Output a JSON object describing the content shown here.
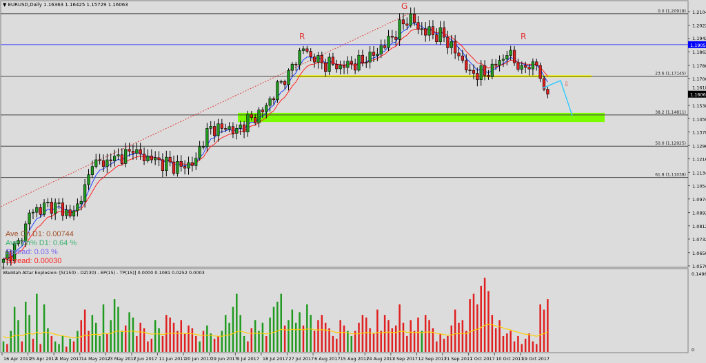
{
  "header": {
    "symbol": "EURUSD,Daily",
    "open": "1.16363",
    "high": "1.16425",
    "low": "1.15729",
    "close": "1.16063"
  },
  "stats": {
    "ave_ch": "Ave Ch D1: 0.00744",
    "ave_ch_pct": "Ave Ch% D1: 0.64 %",
    "spread_pct": "Spread: 0.03 %",
    "spread": "Spread: 0.00030"
  },
  "indicator": {
    "title": "Waddah Attar Explosion: [S(150) - DZ(30) - EP(15) - TP(15)] 0.0000 0.1081 0.0252 0.0003",
    "axis_max": "0.1496",
    "axis_min": "0"
  },
  "annotations": {
    "left_r": "R",
    "head_g": "G",
    "right_r": "R",
    "arrow": "⇩"
  },
  "colors": {
    "bull": "#1f9a1f",
    "bear": "#e02020",
    "ma_fast": "#2040ff",
    "ma_slow": "#ff2020",
    "fib": "#404040",
    "blue_line": "#7b7bef",
    "yellow_zone": "#ffff00",
    "green_zone": "#7cfc00",
    "cyan": "#33ccff",
    "hist_line": "#ffcc00"
  },
  "chart_data": {
    "type": "candlestick",
    "title": "EURUSD,Daily",
    "ylim": [
      1.057,
      1.2104
    ],
    "y_ticks": [
      "1.21040",
      "1.20220",
      "1.19420",
      "1.18620",
      "1.17800",
      "1.17000",
      "1.16180",
      "1.15380",
      "1.14580",
      "1.13780",
      "1.12960",
      "1.12160",
      "1.11340",
      "1.10540",
      "1.09740",
      "1.08920",
      "1.08120",
      "1.07320",
      "1.06500",
      "1.05700"
    ],
    "x_ticks": [
      "16 Apr 2017",
      "25 Apr 2017",
      "4 May 2017",
      "14 May 2017",
      "23 May 2017",
      "1 Jun 2017",
      "11 Jun 2017",
      "20 Jun 2017",
      "29 Jun 2017",
      "9 Jul 2017",
      "18 Jul 2017",
      "27 Jul 2017",
      "6 Aug 2017",
      "15 Aug 2017",
      "24 Aug 2017",
      "3 Sep 2017",
      "12 Sep 2017",
      "21 Sep 2017",
      "1 Oct 2017",
      "10 Oct 2017",
      "19 Oct 2017"
    ],
    "close_anchors": [
      [
        0,
        1.061
      ],
      [
        5,
        1.072
      ],
      [
        7,
        1.089
      ],
      [
        14,
        1.095
      ],
      [
        18,
        1.087
      ],
      [
        21,
        1.096
      ],
      [
        24,
        1.117
      ],
      [
        28,
        1.121
      ],
      [
        35,
        1.125
      ],
      [
        40,
        1.121
      ],
      [
        49,
        1.116
      ],
      [
        52,
        1.122
      ],
      [
        55,
        1.14
      ],
      [
        63,
        1.14
      ],
      [
        70,
        1.15
      ],
      [
        77,
        1.175
      ],
      [
        81,
        1.188
      ],
      [
        84,
        1.18
      ],
      [
        91,
        1.178
      ],
      [
        98,
        1.18
      ],
      [
        105,
        1.195
      ],
      [
        110,
        1.209
      ],
      [
        112,
        1.2
      ],
      [
        119,
        1.195
      ],
      [
        126,
        1.175
      ],
      [
        130,
        1.172
      ],
      [
        133,
        1.178
      ],
      [
        136,
        1.184
      ],
      [
        140,
        1.178
      ],
      [
        144,
        1.178
      ],
      [
        145,
        1.17
      ],
      [
        146,
        1.1636
      ],
      [
        147,
        1.16063
      ]
    ],
    "current_price": "1.16063",
    "horizontal_line": "1.19054",
    "fibonacci": [
      {
        "label": "0.0 (1.20918)",
        "price": 1.20918
      },
      {
        "label": "23.6 (1.17145)",
        "price": 1.17145
      },
      {
        "label": "38.2 (1.14811)",
        "price": 1.14811
      },
      {
        "label": "50.0 (1.12925)",
        "price": 1.12925
      },
      {
        "label": "61.8 (1.11038)",
        "price": 1.11038
      }
    ],
    "support_zone": [
      1.1455,
      1.1485
    ],
    "resistance_line": 1.17145,
    "histogram_x1000": [
      20,
      -15,
      40,
      85,
      60,
      -20,
      95,
      70,
      -25,
      110,
      -15,
      90,
      45,
      -30,
      20,
      15,
      30,
      -10,
      25,
      -20,
      40,
      -60,
      -80,
      -40,
      70,
      55,
      30,
      90,
      -35,
      60,
      100,
      85,
      40,
      -50,
      75,
      65,
      -30,
      -55,
      -45,
      -20,
      -25,
      60,
      45,
      -30,
      -70,
      -65,
      -55,
      -40,
      -60,
      -35,
      -50,
      -45,
      -30,
      20,
      -40,
      50,
      35,
      -25,
      -30,
      40,
      70,
      55,
      85,
      110,
      70,
      30,
      -20,
      -45,
      60,
      40,
      55,
      -30,
      65,
      85,
      95,
      110,
      -50,
      60,
      80,
      55,
      75,
      -50,
      90,
      70,
      -40,
      -60,
      -70,
      -55,
      -45,
      -30,
      -25,
      -60,
      -50,
      40,
      30,
      -40,
      -55,
      -70,
      -65,
      -45,
      -35,
      -80,
      -40,
      -70,
      -60,
      -45,
      -50,
      -90,
      -55,
      -30,
      -60,
      -40,
      -65,
      40,
      -70,
      -60,
      -45,
      -20,
      -35,
      -25,
      -30,
      -50,
      -80,
      -55,
      -60,
      -40,
      -100,
      -110,
      -90,
      -125,
      -140,
      -115,
      -70,
      -45,
      -60,
      -30,
      -35,
      -40,
      -20,
      -30,
      -15,
      -25,
      -35,
      -20,
      -15,
      -90,
      -80,
      -100
    ]
  }
}
